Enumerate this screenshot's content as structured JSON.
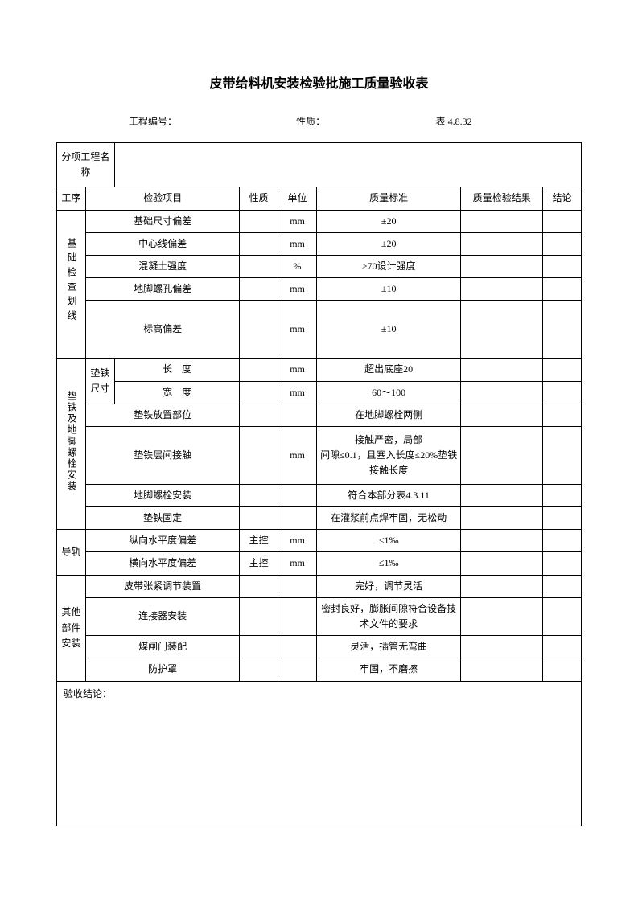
{
  "title": "皮带给料机安装检验批施工质量验收表",
  "meta": {
    "project_no_label": "工程编号：",
    "nature_label": "性质：",
    "table_no": "表 4.8.32"
  },
  "header": {
    "proj_name_label": "分项工程名称",
    "proc": "工序",
    "item": "检验项目",
    "nature": "性质",
    "unit": "单位",
    "standard": "质量标准",
    "result": "质量检验结果",
    "conclusion": "结论"
  },
  "sections": {
    "s1": {
      "label": "基础检查划线",
      "rows": [
        {
          "item": "基础尺寸偏差",
          "nat": "",
          "unit": "mm",
          "std": "±20"
        },
        {
          "item": "中心线偏差",
          "nat": "",
          "unit": "mm",
          "std": "±20"
        },
        {
          "item": "混凝土强度",
          "nat": "",
          "unit": "%",
          "std": "≥70设计强度"
        },
        {
          "item": "地脚螺孔偏差",
          "nat": "",
          "unit": "mm",
          "std": "±10"
        },
        {
          "item": "标高偏差",
          "nat": "",
          "unit": "mm",
          "std": "±10"
        }
      ]
    },
    "s2": {
      "label": "垫铁及地脚螺栓安装",
      "sub_label": "垫铁尺寸",
      "rows": [
        {
          "item": "长　度",
          "nat": "",
          "unit": "mm",
          "std": "超出底座20"
        },
        {
          "item": "宽　度",
          "nat": "",
          "unit": "mm",
          "std": "60～100"
        },
        {
          "item": "垫铁放置部位",
          "nat": "",
          "unit": "",
          "std": "在地脚螺栓两侧"
        },
        {
          "item": "垫铁层间接触",
          "nat": "",
          "unit": "mm",
          "std": "接触严密，局部\n间隙≤0.1，且塞入长度≤20%垫铁接触长度"
        },
        {
          "item": "地脚螺栓安装",
          "nat": "",
          "unit": "",
          "std": "符合本部分表4.3.11"
        },
        {
          "item": "垫铁固定",
          "nat": "",
          "unit": "",
          "std": "在灌浆前点焊牢固，无松动"
        }
      ]
    },
    "s3": {
      "label": "导轨",
      "rows": [
        {
          "item": "纵向水平度偏差",
          "nat": "主控",
          "unit": "mm",
          "std": "≤1‰"
        },
        {
          "item": "横向水平度偏差",
          "nat": "主控",
          "unit": "mm",
          "std": "≤1‰"
        }
      ]
    },
    "s4": {
      "label": "其他部件安装",
      "rows": [
        {
          "item": "皮带张紧调节装置",
          "nat": "",
          "unit": "",
          "std": "完好，调节灵活"
        },
        {
          "item": "连接器安装",
          "nat": "",
          "unit": "",
          "std": "密封良好，膨胀间隙符合设备技术文件的要求"
        },
        {
          "item": "煤闸门装配",
          "nat": "",
          "unit": "",
          "std": "灵活，插管无弯曲"
        },
        {
          "item": "防护罩",
          "nat": "",
          "unit": "",
          "std": "牢固，不磨擦"
        }
      ]
    }
  },
  "conclusion_label": "验收结论："
}
